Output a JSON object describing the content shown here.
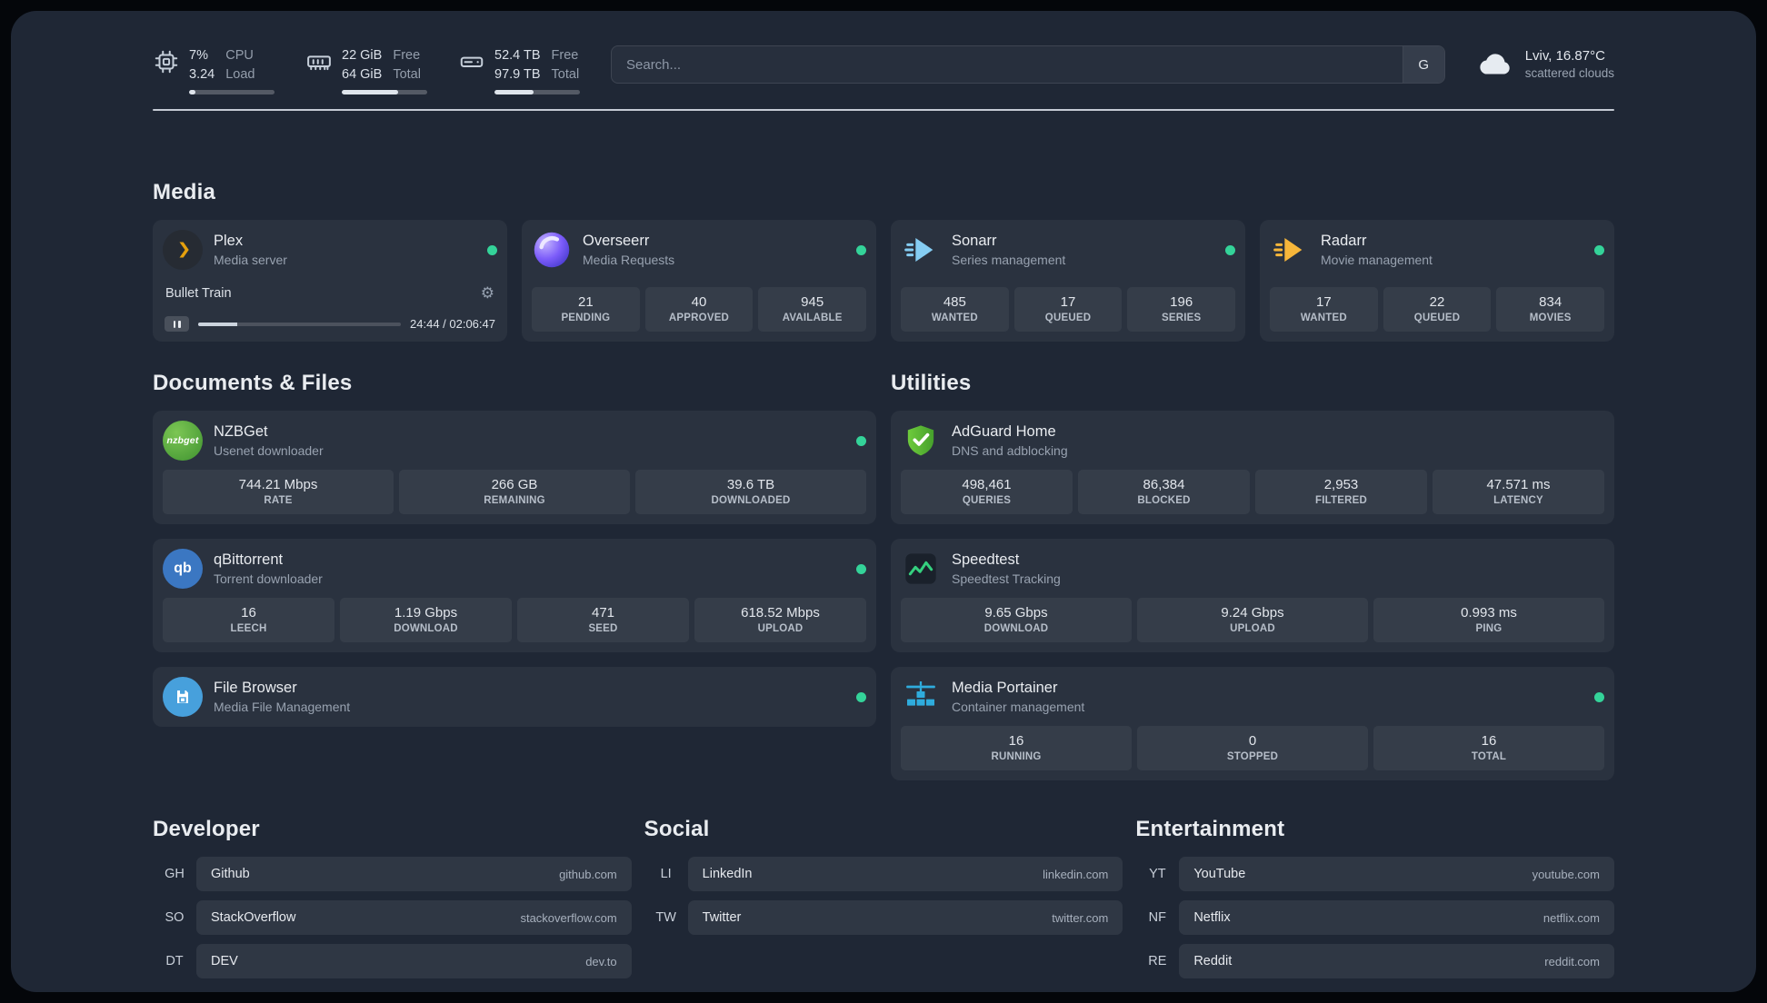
{
  "colors": {
    "status_online": "#34d399",
    "plex_gold": "#e5a00d",
    "overseerr_purple": "#7c5cfa",
    "sonarr_blue": "#85cdf3",
    "radarr_yellow": "#f6b63a",
    "nzbget_green": "#4f9f33",
    "qbittorrent_blue": "#3b77c2",
    "filebrowser_blue": "#47a0dc",
    "adguard_green": "#5cb836",
    "speedtest_green": "#35d07f",
    "portainer_blue": "#2facdd"
  },
  "icons": {
    "gear": "⚙",
    "nzbget_label": "nzbget",
    "qbittorrent_label": "qb"
  },
  "header": {
    "cpu": {
      "icon": "cpu-chip-icon",
      "value_top": "7%",
      "value_bottom": "3.24",
      "label_top": "CPU",
      "label_bottom": "Load",
      "used_percent": 7
    },
    "memory": {
      "icon": "memory-icon",
      "value_top": "22 GiB",
      "value_bottom": "64 GiB",
      "label_top": "Free",
      "label_bottom": "Total",
      "used_percent": 66
    },
    "disk": {
      "icon": "disk-icon",
      "value_top": "52.4 TB",
      "value_bottom": "97.9 TB",
      "label_top": "Free",
      "label_bottom": "Total",
      "used_percent": 46
    },
    "search": {
      "placeholder": "Search...",
      "provider_label": "G"
    },
    "weather": {
      "icon": "cloud-icon",
      "location": "Lviv, 16.87°C",
      "condition": "scattered clouds"
    }
  },
  "media": {
    "section_title": "Media",
    "plex": {
      "name": "Plex",
      "subtitle": "Media server",
      "status": "online",
      "now_playing": "Bullet Train",
      "time": "24:44 / 02:06:47",
      "progress_percent": 19.5
    },
    "overseerr": {
      "name": "Overseerr",
      "subtitle": "Media Requests",
      "status": "online",
      "stats": [
        {
          "value": "21",
          "label": "PENDING"
        },
        {
          "value": "40",
          "label": "APPROVED"
        },
        {
          "value": "945",
          "label": "AVAILABLE"
        }
      ]
    },
    "sonarr": {
      "name": "Sonarr",
      "subtitle": "Series management",
      "status": "online",
      "stats": [
        {
          "value": "485",
          "label": "WANTED"
        },
        {
          "value": "17",
          "label": "QUEUED"
        },
        {
          "value": "196",
          "label": "SERIES"
        }
      ]
    },
    "radarr": {
      "name": "Radarr",
      "subtitle": "Movie management",
      "status": "online",
      "stats": [
        {
          "value": "17",
          "label": "WANTED"
        },
        {
          "value": "22",
          "label": "QUEUED"
        },
        {
          "value": "834",
          "label": "MOVIES"
        }
      ]
    }
  },
  "documents": {
    "section_title": "Documents & Files",
    "nzbget": {
      "name": "NZBGet",
      "subtitle": "Usenet downloader",
      "status": "online",
      "stats": [
        {
          "value": "744.21 Mbps",
          "label": "RATE"
        },
        {
          "value": "266 GB",
          "label": "REMAINING"
        },
        {
          "value": "39.6 TB",
          "label": "DOWNLOADED"
        }
      ]
    },
    "qbittorrent": {
      "name": "qBittorrent",
      "subtitle": "Torrent downloader",
      "status": "online",
      "stats": [
        {
          "value": "16",
          "label": "LEECH"
        },
        {
          "value": "1.19 Gbps",
          "label": "DOWNLOAD"
        },
        {
          "value": "471",
          "label": "SEED"
        },
        {
          "value": "618.52 Mbps",
          "label": "UPLOAD"
        }
      ]
    },
    "filebrowser": {
      "name": "File Browser",
      "subtitle": "Media File Management",
      "status": "online"
    }
  },
  "utilities": {
    "section_title": "Utilities",
    "adguard": {
      "name": "AdGuard Home",
      "subtitle": "DNS and adblocking",
      "stats": [
        {
          "value": "498,461",
          "label": "QUERIES"
        },
        {
          "value": "86,384",
          "label": "BLOCKED"
        },
        {
          "value": "2,953",
          "label": "FILTERED"
        },
        {
          "value": "47.571 ms",
          "label": "LATENCY"
        }
      ]
    },
    "speedtest": {
      "name": "Speedtest",
      "subtitle": "Speedtest Tracking",
      "stats": [
        {
          "value": "9.65 Gbps",
          "label": "DOWNLOAD"
        },
        {
          "value": "9.24 Gbps",
          "label": "UPLOAD"
        },
        {
          "value": "0.993 ms",
          "label": "PING"
        }
      ]
    },
    "portainer": {
      "name": "Media Portainer",
      "subtitle": "Container management",
      "status": "online",
      "stats": [
        {
          "value": "16",
          "label": "RUNNING"
        },
        {
          "value": "0",
          "label": "STOPPED"
        },
        {
          "value": "16",
          "label": "TOTAL"
        }
      ]
    }
  },
  "bookmarks": {
    "developer": {
      "section_title": "Developer",
      "items": [
        {
          "abbr": "GH",
          "name": "Github",
          "url": "github.com"
        },
        {
          "abbr": "SO",
          "name": "StackOverflow",
          "url": "stackoverflow.com"
        },
        {
          "abbr": "DT",
          "name": "DEV",
          "url": "dev.to"
        }
      ]
    },
    "social": {
      "section_title": "Social",
      "items": [
        {
          "abbr": "LI",
          "name": "LinkedIn",
          "url": "linkedin.com"
        },
        {
          "abbr": "TW",
          "name": "Twitter",
          "url": "twitter.com"
        }
      ]
    },
    "entertainment": {
      "section_title": "Entertainment",
      "items": [
        {
          "abbr": "YT",
          "name": "YouTube",
          "url": "youtube.com"
        },
        {
          "abbr": "NF",
          "name": "Netflix",
          "url": "netflix.com"
        },
        {
          "abbr": "RE",
          "name": "Reddit",
          "url": "reddit.com"
        }
      ]
    }
  }
}
